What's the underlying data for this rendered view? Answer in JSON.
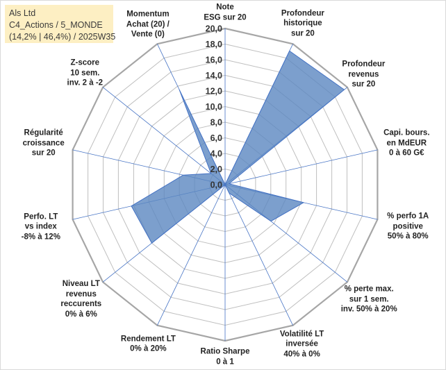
{
  "info": {
    "lines": [
      "Als Ltd",
      "C4_Actions / 5_MONDE",
      "(14,2% | 46,4%) / 2025W35"
    ]
  },
  "colors": {
    "fill": "#5b87c0",
    "fill_opacity": 0.8,
    "outline": "#4472c4",
    "grid": "#bfbfbf",
    "outer_ring": "#a6a6a6",
    "spoke": "#4472c4"
  },
  "chart_data": {
    "type": "radar",
    "rmin": 0,
    "rmax": 20,
    "tick_step": 2,
    "tick_labels": [
      "0,0",
      "2,0",
      "4,0",
      "6,0",
      "8,0",
      "10,0",
      "12,0",
      "14,0",
      "16,0",
      "18,0",
      "20,0"
    ],
    "axes": [
      {
        "lines": [
          "Note",
          "ESG sur 20"
        ],
        "value": 0
      },
      {
        "lines": [
          "Profondeur",
          "historique",
          "sur 20"
        ],
        "value": 19
      },
      {
        "lines": [
          "Profondeur",
          "revenus",
          "sur 20"
        ],
        "value": 19.5
      },
      {
        "lines": [
          "Capi. bours.",
          "en MdEUR",
          "0 à 60 G€"
        ],
        "value": 0.5
      },
      {
        "lines": [
          "% perfo 1A",
          "positive",
          "50% à 80%"
        ],
        "value": 10.3
      },
      {
        "lines": [
          "% perte max.",
          "sur 1 sem.",
          "inv. 50% à 20%"
        ],
        "value": 7.5
      },
      {
        "lines": [
          "Volatilité LT",
          "inversée",
          "40% à 0%"
        ],
        "value": 1.2
      },
      {
        "lines": [
          "Ratio Sharpe",
          "0 à 1"
        ],
        "value": 0
      },
      {
        "lines": [
          "Rendement LT",
          "0% à 20%"
        ],
        "value": 0
      },
      {
        "lines": [
          "Niveau LT",
          "revenus",
          "reccurents",
          "0% à 6%"
        ],
        "value": 12
      },
      {
        "lines": [
          "Perfo. LT",
          "vs index",
          "-8% à 12%"
        ],
        "value": 12.3
      },
      {
        "lines": [
          "Régularité",
          "croissance",
          "sur 20"
        ],
        "value": 5.5
      },
      {
        "lines": [
          "Z-score",
          "10 sem.",
          "inv. 2 à -2"
        ],
        "value": 2.3
      },
      {
        "lines": [
          "Momentum",
          "Achat (20) /",
          "Vente (0)"
        ],
        "value": 13.5
      }
    ]
  }
}
